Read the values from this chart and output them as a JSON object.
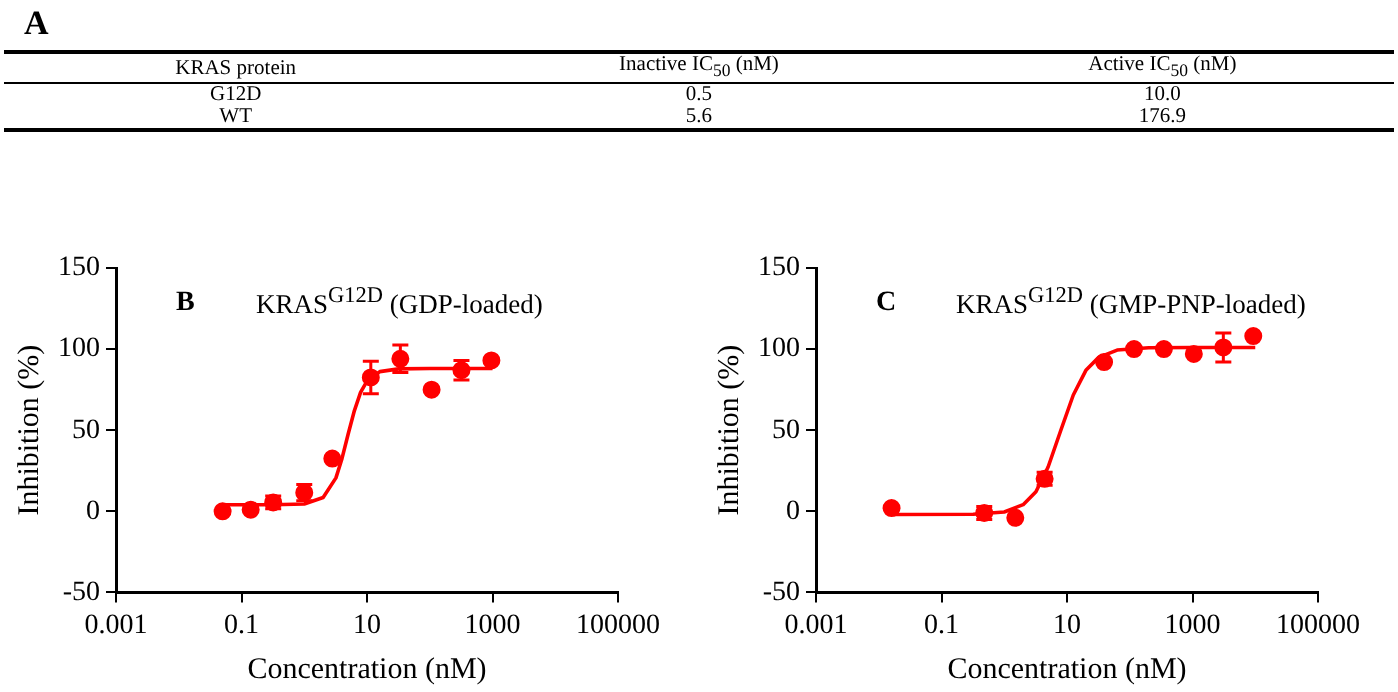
{
  "chart_data": [
    {
      "type": "other",
      "title": "A",
      "annotations": [
        "KRAS protein",
        "Inactive IC$_{50}$ (nM)",
        "Active IC$_{50}$ (nM)",
        "G12D",
        "0.5",
        "10.0",
        "WT",
        "5.6",
        "176.9"
      ]
    },
    {
      "type": "scatter",
      "title": "KRAS$^{G12D}$ (GDP-loaded)",
      "annotations": [
        "B"
      ],
      "xlabel": "Concentration (nM)",
      "ylabel": "Inhibition (%)",
      "log": "x",
      "xlim": [
        0.001,
        100000
      ],
      "xticks": [
        0.001,
        0.1,
        10,
        1000,
        100000
      ],
      "ylim": [
        -50,
        150
      ],
      "yticks": [
        -50,
        0,
        50,
        100,
        150
      ],
      "legend": false,
      "marker": "circle",
      "series": [
        {
          "type": "scatter",
          "color": "#ff0000",
          "x": [
            0.05,
            0.14,
            0.32,
            1,
            2.8,
            11.5,
            34,
            107,
            320,
            960
          ],
          "values": [
            0,
            1,
            5.5,
            11.5,
            32.5,
            82.5,
            94,
            75,
            87,
            93
          ],
          "errors": [
            null,
            null,
            4,
            5,
            null,
            10,
            8.5,
            null,
            6,
            null
          ]
        },
        {
          "type": "line",
          "color": "#ff0000",
          "marker": "none",
          "x": [
            0.05,
            0.32,
            1,
            2,
            3.2,
            4,
            5,
            6.3,
            7.9,
            10,
            16,
            32,
            100,
            1000
          ],
          "values": [
            4,
            4,
            4.5,
            8.5,
            20.6,
            32.6,
            47.5,
            62.1,
            73.3,
            80.2,
            86.1,
            87.8,
            88,
            88
          ]
        }
      ]
    },
    {
      "type": "scatter",
      "title": "KRAS$^{G12D}$ (GMP-PNP-loaded)",
      "annotations": [
        "C"
      ],
      "xlabel": "Concentration (nM)",
      "ylabel": "Inhibition (%)",
      "log": "x",
      "xlim": [
        0.001,
        100000
      ],
      "xticks": [
        0.001,
        0.1,
        10,
        1000,
        100000
      ],
      "ylim": [
        -50,
        150
      ],
      "yticks": [
        -50,
        0,
        50,
        100,
        150
      ],
      "legend": false,
      "marker": "circle",
      "series": [
        {
          "type": "scatter",
          "color": "#ff0000",
          "x": [
            0.016,
            0.48,
            1.5,
            4.4,
            39,
            117,
            350,
            1050,
            3100,
            9300
          ],
          "values": [
            2,
            -1,
            -4,
            20,
            92,
            100,
            100,
            97,
            101,
            108
          ],
          "errors": [
            null,
            4,
            null,
            4,
            null,
            null,
            null,
            null,
            9,
            null
          ]
        },
        {
          "type": "line",
          "color": "#ff0000",
          "marker": "none",
          "x": [
            0.016,
            0.32,
            1,
            2,
            3.2,
            5,
            7.9,
            12.6,
            20,
            32,
            63,
            200,
            1000,
            10000
          ],
          "values": [
            -2,
            -1.8,
            -0.4,
            4.1,
            12.1,
            27.3,
            49.5,
            71.7,
            86.9,
            94.9,
            99.4,
            100.8,
            101,
            101
          ]
        }
      ]
    }
  ]
}
